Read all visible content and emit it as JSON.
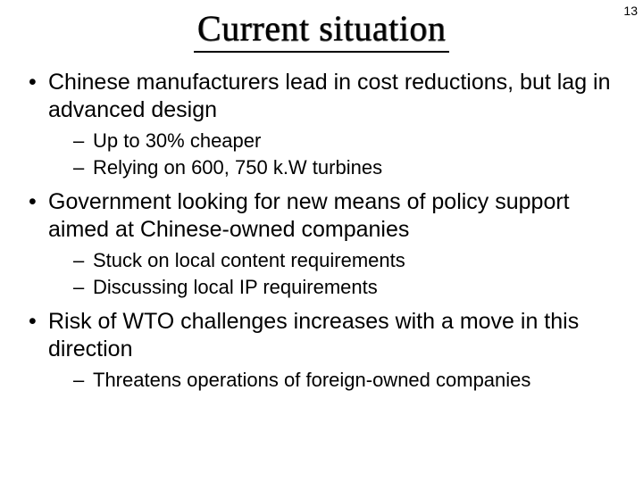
{
  "page_number": "13",
  "title": "Current situation",
  "bullets": [
    {
      "text": "Chinese manufacturers lead in cost reductions, but lag in advanced design",
      "sub": [
        "Up to 30% cheaper",
        "Relying on 600, 750 k.W turbines"
      ]
    },
    {
      "text": "Government looking for new means of policy support aimed at Chinese-owned companies",
      "sub": [
        "Stuck on local content requirements",
        "Discussing local IP requirements"
      ]
    },
    {
      "text": "Risk of WTO challenges increases with a move in this direction",
      "sub": [
        "Threatens operations of foreign-owned companies"
      ]
    }
  ],
  "colors": {
    "background": "#ffffff",
    "text": "#000000",
    "rule": "#000000"
  },
  "typography": {
    "title_font": "Times New Roman",
    "title_size_pt": 40,
    "body_font": "Arial",
    "level1_size_pt": 25,
    "level2_size_pt": 22
  }
}
